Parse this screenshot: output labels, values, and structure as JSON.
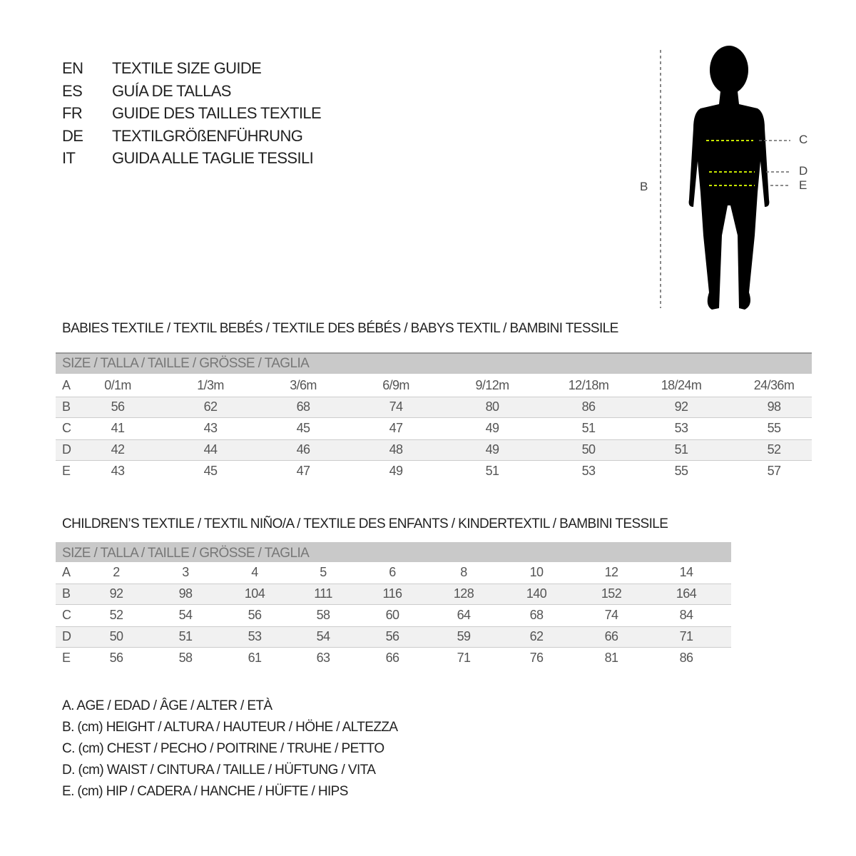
{
  "header": {
    "rows": [
      [
        "EN",
        "TEXTILE SIZE GUIDE"
      ],
      [
        "ES",
        "GUÍA DE TALLAS"
      ],
      [
        "FR",
        "GUIDE DES TAILLES TEXTILE"
      ],
      [
        "DE",
        "TEXTILGRÖßENFÜHRUNG"
      ],
      [
        "IT",
        "GUIDA ALLE TAGLIE TESSILI"
      ]
    ]
  },
  "figure": {
    "labels": [
      "B",
      "C",
      "D",
      "E"
    ]
  },
  "tables": [
    {
      "title": "BABIES TEXTILE / TEXTIL BEBÉS / TEXTILE DES BÉBÉS / BABYS TEXTIL  / BAMBINI TESSILE",
      "size_header": "SIZE / TALLA / TAILLE / GRÖSSE / TAGLIA",
      "rows": [
        [
          "A",
          "0/1m",
          "1/3m",
          "3/6m",
          "6/9m",
          "9/12m",
          "12/18m",
          "18/24m",
          "24/36m"
        ],
        [
          "B",
          56,
          62,
          68,
          74,
          80,
          86,
          92,
          98
        ],
        [
          "C",
          41,
          43,
          45,
          47,
          49,
          51,
          53,
          55
        ],
        [
          "D",
          42,
          44,
          46,
          48,
          49,
          50,
          51,
          52
        ],
        [
          "E",
          43,
          45,
          47,
          49,
          51,
          53,
          55,
          57
        ]
      ]
    },
    {
      "title": "CHILDREN’S TEXTILE / TEXTIL NIÑO/A / TEXTILE DES ENFANTS / KINDERTEXTIL / BAMBINI TESSILE",
      "size_header": "SIZE / TALLA / TAILLE / GRÖSSE / TAGLIA",
      "rows": [
        [
          "A",
          2,
          3,
          4,
          5,
          6,
          8,
          10,
          12,
          14
        ],
        [
          "B",
          92,
          98,
          104,
          111,
          116,
          128,
          140,
          152,
          164
        ],
        [
          "C",
          52,
          54,
          56,
          58,
          60,
          64,
          68,
          74,
          84
        ],
        [
          "D",
          50,
          51,
          53,
          54,
          56,
          59,
          62,
          66,
          71
        ],
        [
          "E",
          56,
          58,
          61,
          63,
          66,
          71,
          76,
          81,
          86
        ]
      ]
    }
  ],
  "legend": [
    "A. AGE / EDAD / ÂGE / ALTER / ETÀ",
    "B. (cm) HEIGHT / ALTURA / HAUTEUR / HÖHE / ALTEZZA",
    "C. (cm) CHEST / PECHO / POITRINE / TRUHE / PETTO",
    "D. (cm) WAIST / CINTURA / TAILLE / HÜFTUNG / VITA",
    "E. (cm) HIP / CADERA / HANCHE / HÜFTE / HIPS"
  ]
}
